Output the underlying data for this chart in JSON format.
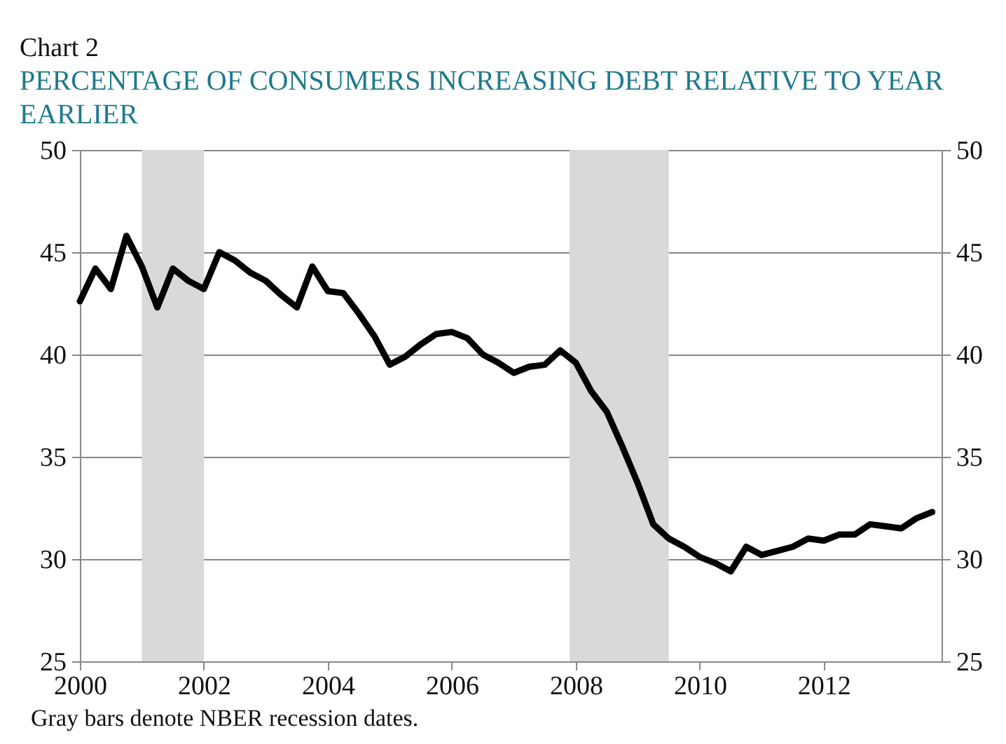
{
  "chart_data": {
    "type": "line",
    "title": "Chart 2",
    "subtitle": "PERCENTAGE OF CONSUMERS INCREASING DEBT RELATIVE TO YEAR EARLIER",
    "annotations": [
      "Gray bars denote NBER recession dates."
    ],
    "x": [
      2000,
      2000.25,
      2000.5,
      2000.75,
      2001,
      2001.25,
      2001.5,
      2001.75,
      2002,
      2002.25,
      2002.5,
      2002.75,
      2003,
      2003.25,
      2003.5,
      2003.75,
      2004,
      2004.25,
      2004.5,
      2004.75,
      2005,
      2005.25,
      2005.5,
      2005.75,
      2006,
      2006.25,
      2006.5,
      2006.75,
      2007,
      2007.25,
      2007.5,
      2007.75,
      2008,
      2008.25,
      2008.5,
      2008.75,
      2009,
      2009.25,
      2009.5,
      2009.75,
      2010,
      2010.25,
      2010.5,
      2010.75,
      2011,
      2011.25,
      2011.5,
      2011.75,
      2012,
      2012.25,
      2012.5,
      2012.75,
      2013,
      2013.25,
      2013.5,
      2013.75
    ],
    "series": [
      {
        "color": "#000000",
        "values": [
          42.6,
          44.2,
          43.2,
          45.8,
          44.3,
          42.3,
          44.2,
          43.6,
          43.2,
          45.0,
          44.6,
          44.0,
          43.6,
          42.9,
          42.3,
          44.3,
          43.1,
          43.0,
          42.0,
          40.9,
          39.5,
          39.9,
          40.5,
          41.0,
          41.1,
          40.8,
          40.0,
          39.6,
          39.1,
          39.4,
          39.5,
          40.2,
          39.6,
          38.2,
          37.2,
          35.5,
          33.7,
          31.7,
          31.0,
          30.6,
          30.1,
          29.8,
          29.4,
          30.6,
          30.2,
          30.4,
          30.6,
          31.0,
          30.9,
          31.2,
          31.2,
          31.7,
          31.6,
          31.5,
          32.0,
          32.3
        ]
      }
    ],
    "bands": [
      {
        "axis": "x",
        "from": 2001.0,
        "to": 2002.0,
        "color": "#d9d9d9"
      },
      {
        "axis": "x",
        "from": 2007.9,
        "to": 2009.5,
        "color": "#d9d9d9"
      }
    ],
    "xlim": [
      2000,
      2013.9
    ],
    "xticks": [
      2000,
      2002,
      2004,
      2006,
      2008,
      2010,
      2012
    ],
    "ylim": [
      25,
      50
    ],
    "yticks": [
      25,
      30,
      35,
      40,
      45,
      50
    ],
    "y2lim": [
      25,
      50
    ],
    "y2ticks": [
      25,
      30,
      35,
      40,
      45,
      50
    ],
    "grid": "y",
    "marker": "none",
    "line_style": "solid"
  }
}
